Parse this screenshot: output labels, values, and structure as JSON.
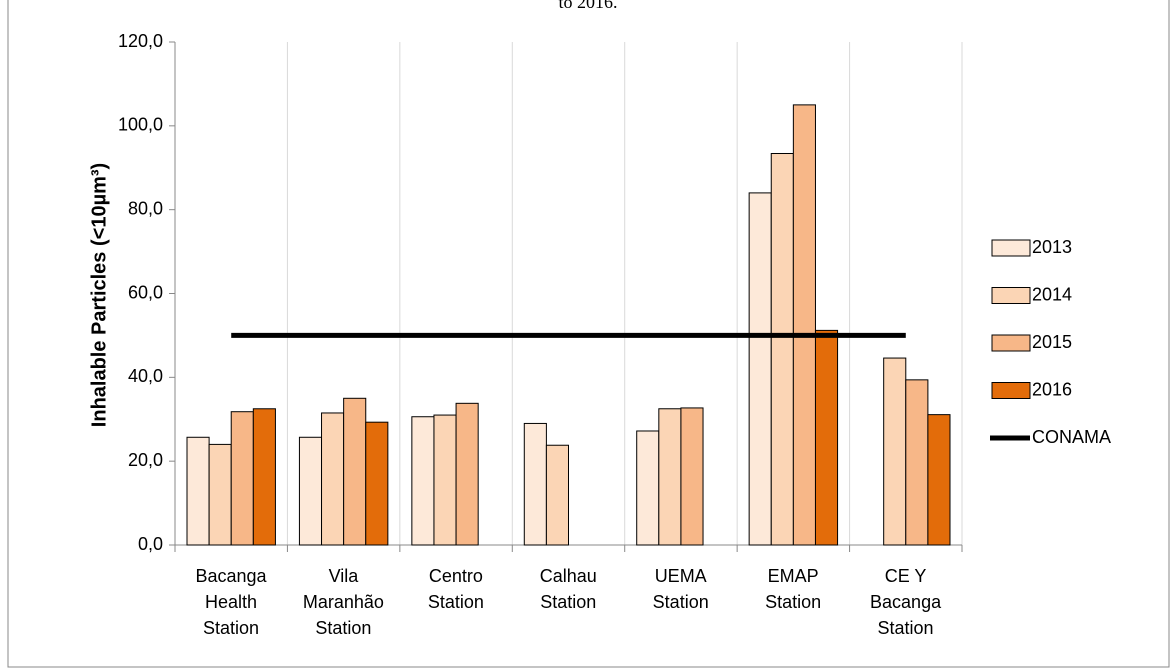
{
  "chart_data": {
    "type": "bar",
    "title": "to 2016.",
    "y_label": "Inhalable Particles (<10µm³)",
    "categories": [
      "Bacanga\nHealth\nStation",
      "Vila\nMaranhão\nStation",
      "Centro\nStation",
      "Calhau\nStation",
      "UEMA\nStation",
      "EMAP\nStation",
      "CE Y\nBacanga\nStation"
    ],
    "series": [
      {
        "name": "2013",
        "color": "#fde9d9",
        "values": [
          25.7,
          25.7,
          30.6,
          29.0,
          27.2,
          84.0,
          null
        ]
      },
      {
        "name": "2014",
        "color": "#fbd5b5",
        "values": [
          24.0,
          31.5,
          31.0,
          23.8,
          32.5,
          93.4,
          44.6
        ]
      },
      {
        "name": "2015",
        "color": "#f7b788",
        "values": [
          31.8,
          35.0,
          33.8,
          null,
          32.7,
          105.0,
          39.4
        ]
      },
      {
        "name": "2016",
        "color": "#e36c0a",
        "values": [
          32.5,
          29.3,
          null,
          null,
          null,
          51.2,
          31.1
        ]
      },
      {
        "name": "CONAMA",
        "color": "#000000",
        "type": "line",
        "values": [
          50,
          50,
          50,
          50,
          50,
          50,
          50
        ]
      }
    ],
    "ylim": [
      0,
      120
    ],
    "yticks": [
      {
        "value": 0,
        "label": "0,0"
      },
      {
        "value": 20,
        "label": "20,0"
      },
      {
        "value": 40,
        "label": "40,0"
      },
      {
        "value": 60,
        "label": "60,0"
      },
      {
        "value": 80,
        "label": "80,0"
      },
      {
        "value": 100,
        "label": "100,0"
      },
      {
        "value": 120,
        "label": "120,0"
      }
    ],
    "grid": "x",
    "legend": "right"
  }
}
